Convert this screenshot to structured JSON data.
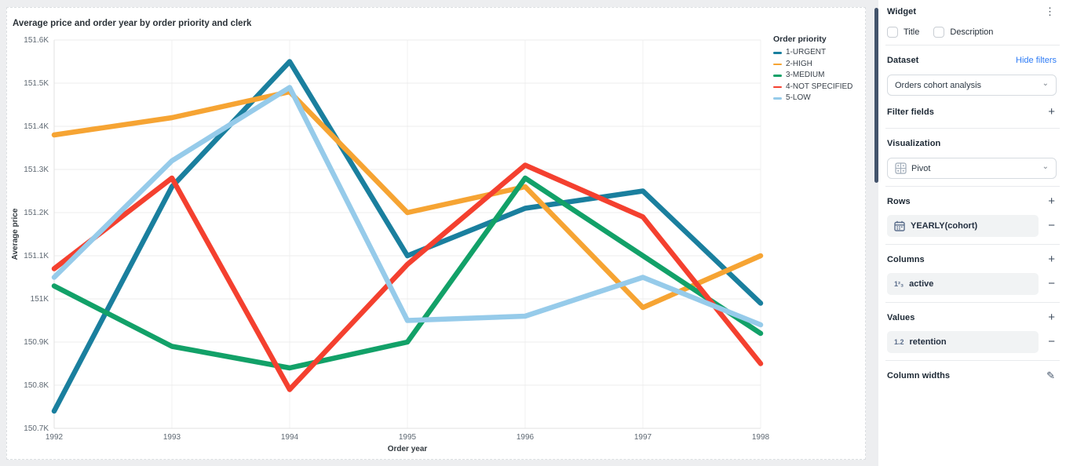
{
  "icons": {
    "kebab": "⋮",
    "plus": "+",
    "minus": "−",
    "chevron": "⌄",
    "pencil": "✎"
  },
  "panel": {
    "widget": {
      "title": "Widget",
      "checkboxes": [
        {
          "label": "Title",
          "checked": false
        },
        {
          "label": "Description",
          "checked": false
        }
      ]
    },
    "dataset": {
      "label": "Dataset",
      "hide_filters_label": "Hide filters",
      "selected": "Orders cohort analysis"
    },
    "filter_fields": {
      "label": "Filter fields"
    },
    "visualization": {
      "label": "Visualization",
      "selected": "Pivot"
    },
    "rows": {
      "label": "Rows",
      "item": "YEARLY(cohort)"
    },
    "columns": {
      "label": "Columns",
      "item": "active",
      "icon_text": "1²₃"
    },
    "values": {
      "label": "Values",
      "item": "retention",
      "icon_text": "1.2"
    },
    "column_widths": {
      "label": "Column widths"
    }
  },
  "chart_data": {
    "type": "line",
    "title": "Average price and order year by order priority and clerk",
    "xlabel": "Order year",
    "ylabel": "Average price",
    "legend_title": "Order priority",
    "legend_position": "right",
    "grid": true,
    "unit": "K",
    "x": [
      1992,
      1993,
      1994,
      1995,
      1996,
      1997,
      1998
    ],
    "ylim_k": [
      150.7,
      151.6
    ],
    "ytick_step_k": 0.1,
    "series": [
      {
        "name": "1-URGENT",
        "color": "#1a7f9e",
        "values_k": [
          150.74,
          151.26,
          151.55,
          151.1,
          151.21,
          151.25,
          150.99
        ]
      },
      {
        "name": "2-HIGH",
        "color": "#f6a433",
        "values_k": [
          151.38,
          151.42,
          151.48,
          151.2,
          151.26,
          150.98,
          151.1
        ]
      },
      {
        "name": "3-MEDIUM",
        "color": "#12a168",
        "values_k": [
          151.03,
          150.89,
          150.84,
          150.9,
          151.28,
          151.1,
          150.92
        ]
      },
      {
        "name": "4-NOT SPECIFIED",
        "color": "#f4402f",
        "values_k": [
          151.07,
          151.28,
          150.79,
          151.08,
          151.31,
          151.19,
          150.85
        ]
      },
      {
        "name": "5-LOW",
        "color": "#96cbea",
        "values_k": [
          151.05,
          151.32,
          151.49,
          150.95,
          150.96,
          151.05,
          150.94
        ]
      }
    ]
  }
}
